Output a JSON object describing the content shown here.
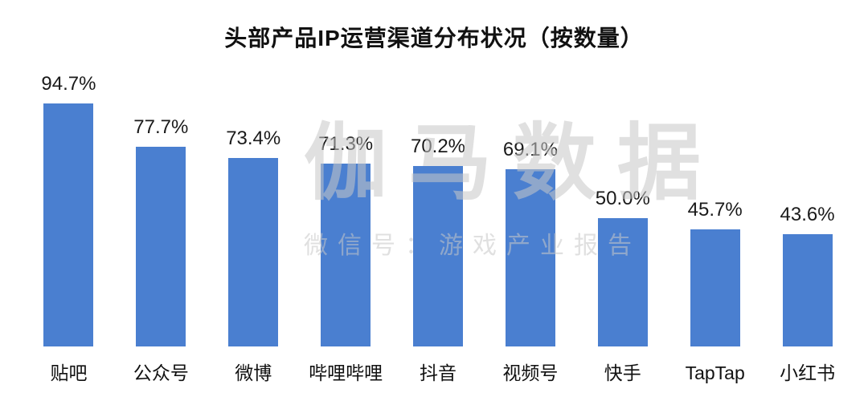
{
  "chart_data": {
    "type": "bar",
    "title": "头部产品IP运营渠道分布状况（按数量）",
    "categories": [
      "贴吧",
      "公众号",
      "微博",
      "哔哩哔哩",
      "抖音",
      "视频号",
      "快手",
      "TapTap",
      "小红书"
    ],
    "values": [
      94.7,
      77.7,
      73.4,
      71.3,
      70.2,
      69.1,
      50.0,
      45.7,
      43.6
    ],
    "value_labels": [
      "94.7%",
      "77.7%",
      "73.4%",
      "71.3%",
      "70.2%",
      "69.1%",
      "50.0%",
      "45.7%",
      "43.6%"
    ],
    "xlabel": "",
    "ylabel": "",
    "ylim": [
      0,
      100
    ],
    "grid": false,
    "legend": false,
    "bar_color": "#4a7fd0"
  },
  "watermark": {
    "line1": "伽马数据",
    "line2": "微信号：游戏产业报告"
  }
}
